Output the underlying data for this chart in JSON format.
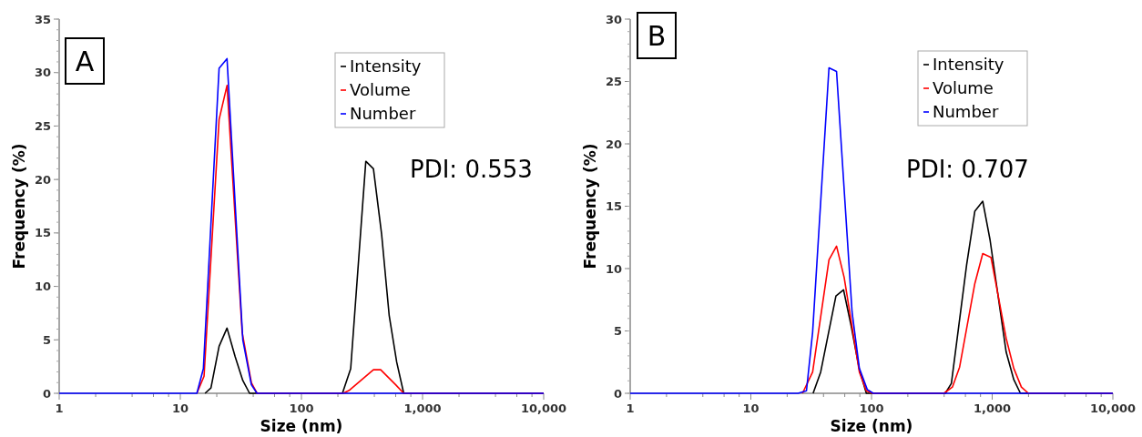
{
  "chart_data": [
    {
      "type": "line",
      "xlabel": "Size (nm)",
      "ylabel": "Frequency (%)",
      "log": "x",
      "grid": false,
      "legend": "top right",
      "marker": "none",
      "line_style": "solid",
      "xlim": [
        1,
        10000
      ],
      "ylim": [
        0,
        35
      ],
      "xticks": [
        1,
        {
          "value": 2,
          "label": null
        },
        {
          "value": 4,
          "label": null
        },
        {
          "value": 6,
          "label": null
        },
        {
          "value": 8,
          "label": null
        },
        10,
        {
          "value": 20,
          "label": null
        },
        {
          "value": 40,
          "label": null
        },
        {
          "value": 60,
          "label": null
        },
        {
          "value": 80,
          "label": null
        },
        100,
        {
          "value": 200,
          "label": null
        },
        {
          "value": 400,
          "label": null
        },
        {
          "value": 600,
          "label": null
        },
        {
          "value": 800,
          "label": null
        },
        {
          "value": 1000,
          "label": "1,000"
        },
        {
          "value": 2000,
          "label": null
        },
        {
          "value": 4000,
          "label": null
        },
        {
          "value": 6000,
          "label": null
        },
        {
          "value": 8000,
          "label": null
        },
        {
          "value": 10000,
          "label": "10,000"
        }
      ],
      "yticks": [
        0,
        5,
        10,
        15,
        20,
        25,
        30,
        35
      ],
      "annotations": [
        "A",
        "PDI: 0.553"
      ],
      "series": [
        {
          "name": "Intensity",
          "color": "#000000",
          "x": [
            16,
            17.9,
            20.9,
            24.3,
            28.4,
            32.8,
            37.3,
            218,
            255,
            340,
            393,
            459,
            530,
            612,
            699,
            10000
          ],
          "values": [
            0,
            0.5,
            4.4,
            6.1,
            3.4,
            1.2,
            0,
            0,
            2.3,
            21.7,
            21.0,
            14.9,
            7.3,
            2.9,
            0,
            0
          ]
        },
        {
          "name": "Volume",
          "color": "#ff0000",
          "x": [
            13.7,
            15.7,
            20.9,
            24.3,
            32.4,
            38.6,
            43,
            221,
            250,
            393,
            451,
            600,
            699,
            10000
          ],
          "values": [
            0,
            1.6,
            25.6,
            28.8,
            5.7,
            1.0,
            0,
            0,
            0.3,
            2.2,
            2.2,
            0.8,
            0,
            0
          ]
        },
        {
          "name": "Number",
          "color": "#0000ff",
          "x": [
            1,
            13.7,
            15.5,
            20.9,
            24.3,
            32.8,
            38.6,
            43,
            10000
          ],
          "values": [
            0,
            0,
            2.3,
            30.4,
            31.3,
            5.0,
            0.8,
            0,
            0
          ]
        }
      ]
    },
    {
      "type": "line",
      "xlabel": "Size (nm)",
      "ylabel": "Frequency (%)",
      "log": "x",
      "grid": false,
      "legend": "top right",
      "marker": "none",
      "line_style": "solid",
      "xlim": [
        1,
        10000
      ],
      "ylim": [
        0,
        30
      ],
      "xticks": [
        1,
        {
          "value": 2,
          "label": null
        },
        {
          "value": 4,
          "label": null
        },
        {
          "value": 6,
          "label": null
        },
        {
          "value": 8,
          "label": null
        },
        10,
        {
          "value": 20,
          "label": null
        },
        {
          "value": 40,
          "label": null
        },
        {
          "value": 60,
          "label": null
        },
        {
          "value": 80,
          "label": null
        },
        100,
        {
          "value": 200,
          "label": null
        },
        {
          "value": 400,
          "label": null
        },
        {
          "value": 600,
          "label": null
        },
        {
          "value": 800,
          "label": null
        },
        {
          "value": 1000,
          "label": "1,000"
        },
        {
          "value": 2000,
          "label": null
        },
        {
          "value": 4000,
          "label": null
        },
        {
          "value": 6000,
          "label": null
        },
        {
          "value": 8000,
          "label": null
        },
        {
          "value": 10000,
          "label": "10,000"
        }
      ],
      "yticks": [
        0,
        5,
        10,
        15,
        20,
        25,
        30
      ],
      "annotations": [
        "B",
        "PDI: 0.707"
      ],
      "series": [
        {
          "name": "Intensity",
          "color": "#000000",
          "x": [
            32.8,
            37.9,
            50.7,
            58.6,
            67.8,
            79.3,
            90.6,
            409,
            459,
            614,
            718,
            835,
            960,
            1306,
            1510,
            1714,
            10000
          ],
          "values": [
            0,
            1.7,
            7.8,
            8.3,
            5.4,
            1.9,
            0,
            0,
            0.8,
            10.3,
            14.6,
            15.4,
            12.3,
            3.3,
            1.1,
            0,
            0
          ]
        },
        {
          "name": "Volume",
          "color": "#ff0000",
          "x": [
            26.8,
            32.5,
            44.4,
            51.3,
            59.3,
            79.3,
            90.6,
            102,
            398,
            468,
            537,
            718,
            835,
            977,
            1306,
            1510,
            1745,
            1995,
            10000
          ],
          "values": [
            0,
            1.7,
            10.7,
            11.8,
            9.3,
            1.7,
            0.2,
            0,
            0,
            0.5,
            2.1,
            8.8,
            11.2,
            10.9,
            4.4,
            2.0,
            0.5,
            0,
            0
          ]
        },
        {
          "name": "Number",
          "color": "#0000ff",
          "x": [
            1,
            24.6,
            28.9,
            32.5,
            44.4,
            51.3,
            69,
            79.3,
            92.2,
            103.5,
            10000
          ],
          "values": [
            0,
            0,
            0.2,
            4.9,
            26.1,
            25.8,
            6.5,
            2.0,
            0.3,
            0,
            0
          ]
        }
      ]
    }
  ]
}
